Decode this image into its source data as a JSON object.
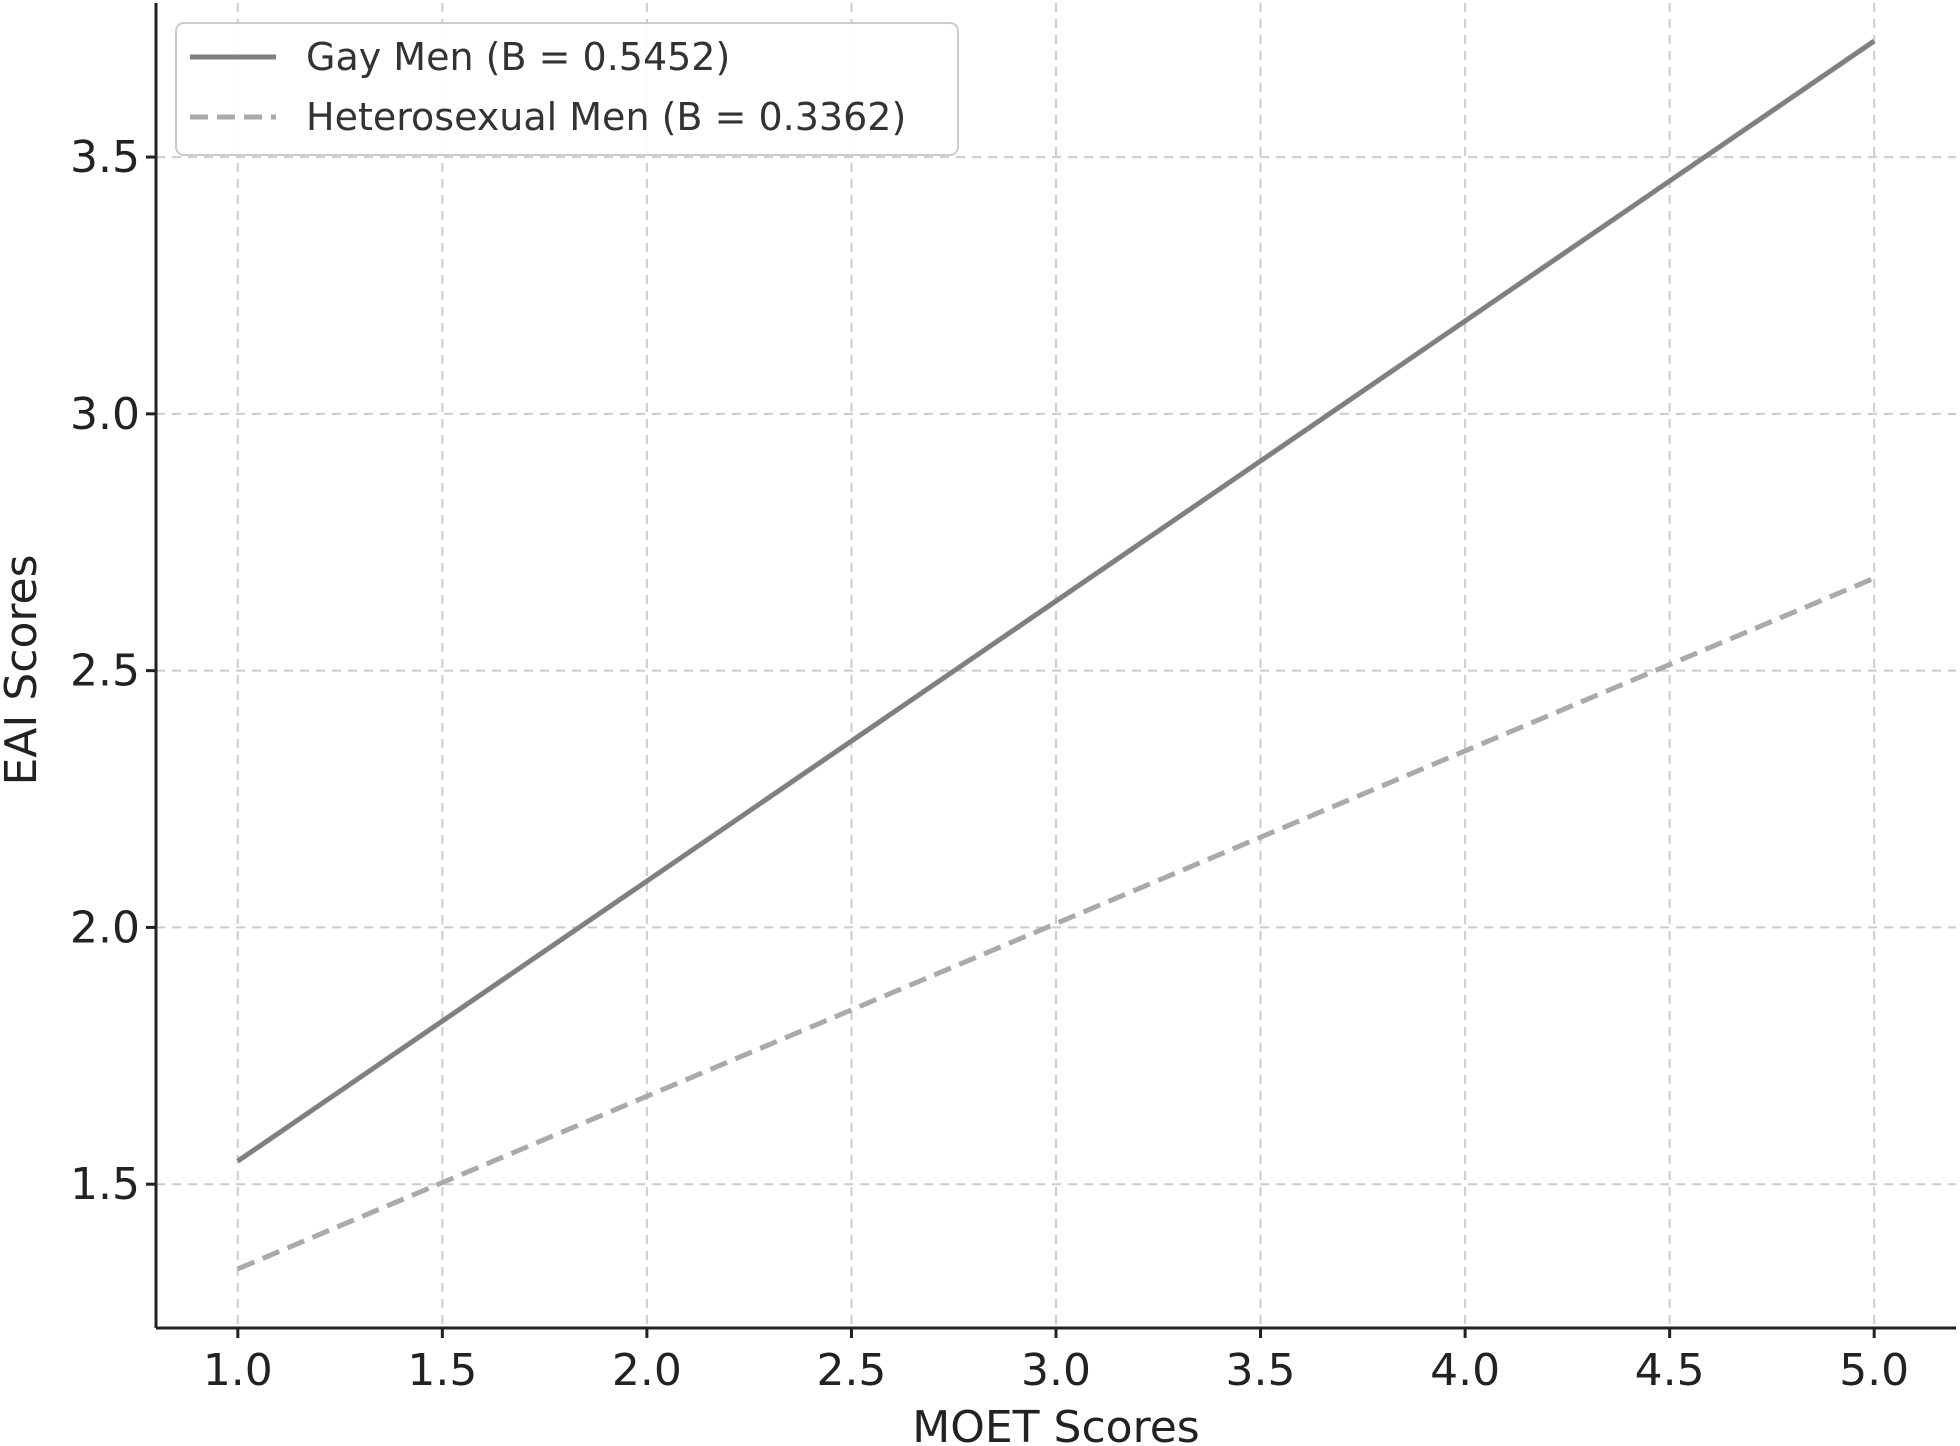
{
  "chart_data": {
    "type": "line",
    "title": "",
    "xlabel": "MOET Scores",
    "ylabel": "EAI Scores",
    "xlim": [
      0.8,
      5.2
    ],
    "ylim": [
      1.22,
      3.8
    ],
    "xticks": [
      1.0,
      1.5,
      2.0,
      2.5,
      3.0,
      3.5,
      4.0,
      4.5,
      5.0
    ],
    "yticks": [
      1.5,
      2.0,
      2.5,
      3.0,
      3.5
    ],
    "xtick_labels": [
      "1.0",
      "1.5",
      "2.0",
      "2.5",
      "3.0",
      "3.5",
      "4.0",
      "4.5",
      "5.0"
    ],
    "ytick_labels": [
      "1.5",
      "2.0",
      "2.5",
      "3.0",
      "3.5"
    ],
    "grid": true,
    "legend_position": "top-left",
    "series": [
      {
        "name": "Gay Men (B = 0.5452)",
        "x": [
          1.0,
          5.0
        ],
        "y": [
          1.545,
          3.726
        ],
        "style": "solid",
        "color": "#808080"
      },
      {
        "name": "Heterosexual Men (B = 0.3362)",
        "x": [
          1.0,
          5.0
        ],
        "y": [
          1.335,
          2.68
        ],
        "style": "dashed",
        "color": "#aaaaaa"
      }
    ]
  }
}
